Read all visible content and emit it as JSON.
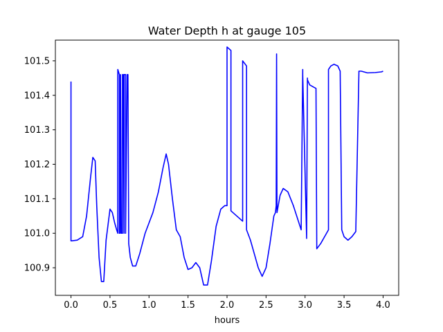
{
  "chart_data": {
    "type": "line",
    "title": "Water Depth h at gauge 105",
    "xlabel": "hours",
    "ylabel": "",
    "xlim": [
      -0.2,
      4.2
    ],
    "ylim": [
      100.82,
      101.56
    ],
    "xticks": [
      0.0,
      0.5,
      1.0,
      1.5,
      2.0,
      2.5,
      3.0,
      3.5,
      4.0
    ],
    "xtick_labels": [
      "0.0",
      "0.5",
      "1.0",
      "1.5",
      "2.0",
      "2.5",
      "3.0",
      "3.5",
      "4.0"
    ],
    "yticks": [
      100.9,
      101.0,
      101.1,
      101.2,
      101.3,
      101.4,
      101.5
    ],
    "ytick_labels": [
      "100.9",
      "101.0",
      "101.1",
      "101.2",
      "101.3",
      "101.4",
      "101.5"
    ],
    "grid": false,
    "legend": "none",
    "series": [
      {
        "color": "#0000ff",
        "x": [
          0.0,
          0.0,
          0.01,
          0.08,
          0.15,
          0.2,
          0.25,
          0.28,
          0.31,
          0.33,
          0.36,
          0.39,
          0.42,
          0.45,
          0.5,
          0.53,
          0.56,
          0.585,
          0.6,
          0.6,
          0.62,
          0.62,
          0.63,
          0.635,
          0.635,
          0.645,
          0.66,
          0.66,
          0.67,
          0.68,
          0.68,
          0.7,
          0.7,
          0.72,
          0.72,
          0.73,
          0.74,
          0.76,
          0.79,
          0.83,
          0.88,
          0.95,
          1.05,
          1.12,
          1.18,
          1.22,
          1.25,
          1.3,
          1.35,
          1.4,
          1.45,
          1.5,
          1.55,
          1.6,
          1.65,
          1.7,
          1.75,
          1.8,
          1.86,
          1.92,
          1.97,
          2.0,
          2.0,
          2.05,
          2.05,
          2.1,
          2.15,
          2.2,
          2.2,
          2.25,
          2.25,
          2.3,
          2.4,
          2.45,
          2.5,
          2.55,
          2.6,
          2.62,
          2.63,
          2.635,
          2.64,
          2.68,
          2.72,
          2.78,
          2.85,
          2.95,
          2.97,
          2.97,
          3.02,
          3.03,
          3.03,
          3.06,
          3.14,
          3.15,
          3.15,
          3.2,
          3.25,
          3.3,
          3.3,
          3.33,
          3.37,
          3.42,
          3.45,
          3.47,
          3.47,
          3.5,
          3.55,
          3.6,
          3.65,
          3.69,
          3.69,
          3.72,
          3.8,
          3.9,
          3.98,
          4.0
        ],
        "y": [
          101.44,
          100.978,
          100.978,
          100.98,
          100.99,
          101.05,
          101.16,
          101.22,
          101.21,
          101.08,
          100.93,
          100.86,
          100.86,
          100.98,
          101.07,
          101.06,
          101.03,
          101.01,
          101.0,
          101.475,
          101.46,
          101.0,
          101.0,
          101.46,
          101.46,
          101.0,
          101.0,
          101.46,
          101.46,
          101.0,
          101.46,
          101.46,
          101.0,
          101.46,
          101.46,
          101.46,
          100.97,
          100.93,
          100.905,
          100.905,
          100.94,
          101.0,
          101.06,
          101.12,
          101.19,
          101.23,
          101.2,
          101.1,
          101.01,
          100.99,
          100.93,
          100.895,
          100.9,
          100.915,
          100.9,
          100.85,
          100.85,
          100.92,
          101.02,
          101.07,
          101.08,
          101.08,
          101.54,
          101.53,
          101.065,
          101.055,
          101.045,
          101.035,
          101.5,
          101.485,
          101.01,
          100.98,
          100.9,
          100.875,
          100.9,
          100.97,
          101.05,
          101.06,
          101.08,
          101.52,
          101.06,
          101.11,
          101.13,
          101.12,
          101.08,
          101.01,
          101.475,
          101.46,
          100.985,
          101.45,
          101.445,
          101.43,
          101.42,
          100.955,
          100.955,
          100.97,
          100.99,
          101.01,
          101.475,
          101.485,
          101.49,
          101.485,
          101.47,
          101.01,
          101.01,
          100.99,
          100.98,
          100.99,
          101.005,
          101.465,
          101.47,
          101.47,
          101.465,
          101.466,
          101.468,
          101.47
        ]
      }
    ]
  }
}
